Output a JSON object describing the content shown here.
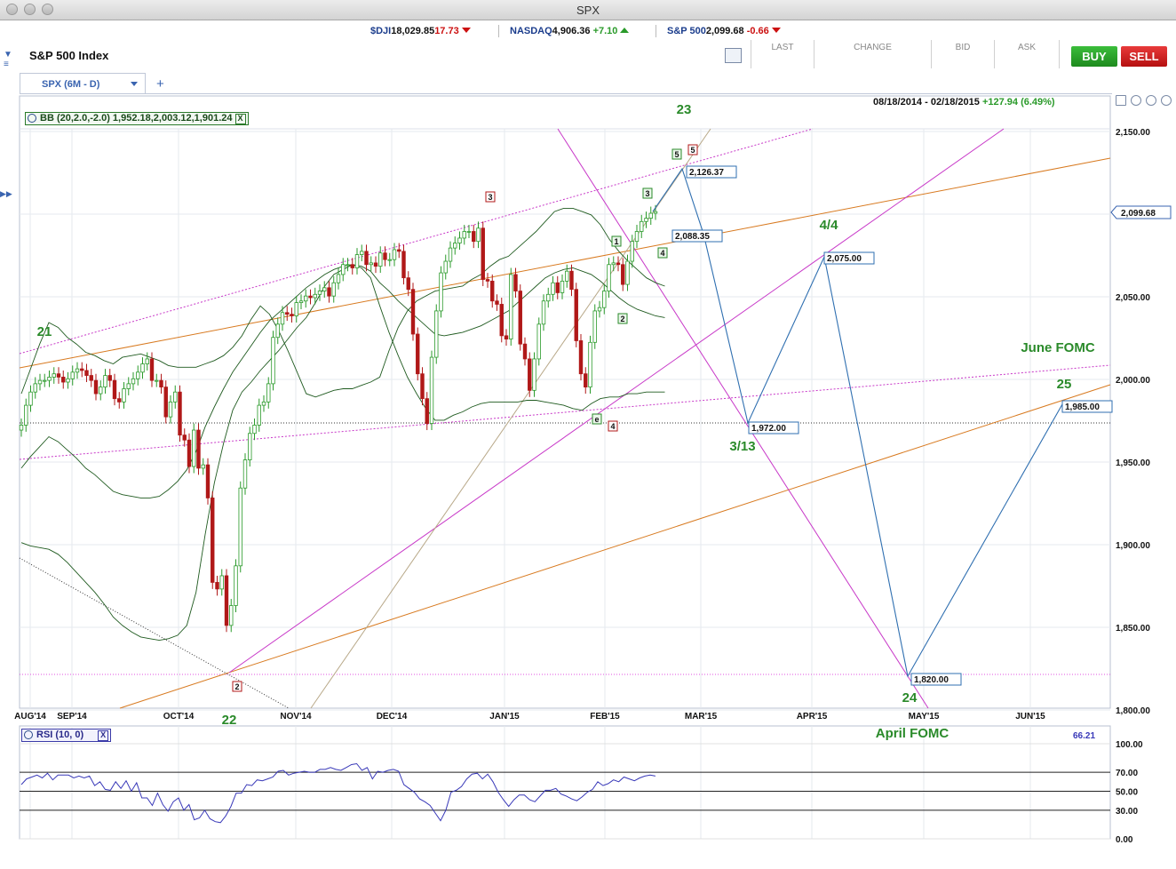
{
  "window": {
    "title": "SPX"
  },
  "tickers": [
    {
      "name": "$DJI",
      "value": "18,029.85",
      "change": "17.73",
      "dir": "down"
    },
    {
      "name": "NASDAQ",
      "value": "4,906.36",
      "change": "+7.10",
      "dir": "up"
    },
    {
      "name": "S&P 500",
      "value": "2,099.68",
      "change": "-0.66",
      "dir": "down"
    }
  ],
  "instrument": {
    "name": "S&P 500 Index"
  },
  "quote_headers": {
    "last": "LAST",
    "change": "CHANGE",
    "bid": "BID",
    "ask": "ASK"
  },
  "actions": {
    "buy": "BUY",
    "sell": "SELL"
  },
  "tab": {
    "label": "SPX (6M - D)",
    "add": "+"
  },
  "range": {
    "dates": "08/18/2014 - 02/18/2015",
    "change": "+127.94 (6.49%)"
  },
  "indicators": {
    "bb": "BB (20,2.0,-2.0) 1,952.18,2,003.12,1,901.24",
    "rsi": "RSI (10, 0)",
    "rsi_value": "66.21",
    "close_x": "X"
  },
  "colors": {
    "up": "#2a9a2a",
    "down": "#b01818",
    "bb": "#1f5a1f",
    "rsi": "#3838b8",
    "projection": "#2f6fb0",
    "magenta": "#c838c8",
    "orange": "#d87a20"
  },
  "chart_data": {
    "type": "candlestick",
    "title": "",
    "price_axis": {
      "ticks": [
        "2,150.00",
        "2,100.00",
        "2,050.00",
        "2,000.00",
        "1,950.00",
        "1,900.00",
        "1,850.00",
        "1,800.00"
      ],
      "min": 1800,
      "max": 2150
    },
    "time_axis": {
      "ticks": [
        "AUG'14",
        "SEP'14",
        "OCT'14",
        "NOV'14",
        "DEC'14",
        "JAN'15",
        "FEB'15",
        "MAR'15",
        "APR'15",
        "MAY'15",
        "JUN'15"
      ]
    },
    "last_price": "2,099.68",
    "closes": [
      1971,
      1983,
      1991,
      1996,
      1998,
      1998,
      2000,
      2002,
      2000,
      1997,
      1999,
      2003,
      2005,
      2004,
      2001,
      1998,
      1990,
      1994,
      2001,
      1998,
      1987,
      1985,
      1993,
      1996,
      1999,
      2003,
      2008,
      2011,
      1998,
      1998,
      1994,
      1976,
      1985,
      1991,
      1965,
      1962,
      1946,
      1968,
      1945,
      1947,
      1927,
      1876,
      1872,
      1880,
      1850,
      1862,
      1886,
      1933,
      1950,
      1966,
      1971,
      1983,
      1985,
      1996,
      2024,
      2032,
      2039,
      2038,
      2037,
      2045,
      2046,
      2049,
      2048,
      2050,
      2052,
      2054,
      2049,
      2057,
      2062,
      2068,
      2068,
      2066,
      2074,
      2076,
      2068,
      2069,
      2067,
      2075,
      2071,
      2071,
      2077,
      2076,
      2060,
      2053,
      2026,
      2002,
      1987,
      1972,
      2012,
      2040,
      2063,
      2070,
      2078,
      2081,
      2084,
      2088,
      2088,
      2082,
      2090,
      2059,
      2058,
      2046,
      2044,
      2025,
      2023,
      2062,
      2052,
      2020,
      2011,
      1992,
      2011,
      2032,
      2046,
      2050,
      2057,
      2051,
      2058,
      2064,
      2053,
      2022,
      2002,
      1994,
      2021,
      2040,
      2042,
      2052,
      2068,
      2069,
      2068,
      2056,
      2070,
      2082,
      2088,
      2094,
      2096,
      2099,
      2100
    ],
    "bb_upper": [
      1990,
      2005,
      2020,
      2033,
      2030,
      2024,
      2020,
      2015,
      2013,
      2010,
      2008,
      2012,
      2013,
      2014,
      2012,
      2010,
      2007,
      2006,
      2006,
      2006,
      2008,
      2010,
      2013,
      2018,
      2025,
      2035,
      2043,
      2038,
      2028,
      2016,
      2003,
      1990,
      1988,
      1990,
      1992,
      1993,
      1993,
      1995,
      1997,
      2000,
      2016,
      2030,
      2040,
      2046,
      2049,
      2052,
      2053,
      2054,
      2055,
      2059,
      2062,
      2067,
      2071,
      2073,
      2078,
      2083,
      2088,
      2094,
      2100,
      2102,
      2102,
      2100,
      2098,
      2092,
      2083,
      2076,
      2070,
      2065,
      2060,
      2057,
      2055
    ],
    "bb_lower": [
      1900,
      1898,
      1897,
      1896,
      1893,
      1888,
      1882,
      1876,
      1870,
      1863,
      1855,
      1850,
      1846,
      1843,
      1842,
      1841,
      1842,
      1844,
      1850,
      1870,
      1905,
      1936,
      1960,
      1980,
      1991,
      1997,
      2004,
      2010,
      2016,
      2023,
      2030,
      2036,
      2045,
      2055,
      2062,
      2065,
      2068,
      2066,
      2060,
      2043,
      2027,
      2013,
      2000,
      1990,
      1981,
      1974,
      1974,
      1977,
      1979,
      1982,
      1984,
      1985,
      1985,
      1985,
      1985,
      1986,
      1986,
      1985,
      1984,
      1983,
      1981,
      1980,
      1984,
      1987,
      1988,
      1988,
      1990,
      1990,
      1991,
      1991,
      1991
    ],
    "bb_middle": [
      1945,
      1952,
      1958,
      1964,
      1961,
      1956,
      1951,
      1945,
      1941,
      1936,
      1931,
      1929,
      1928,
      1927,
      1927,
      1928,
      1932,
      1937,
      1944,
      1955,
      1970,
      1982,
      1993,
      2003,
      2011,
      2019,
      2027,
      2034,
      2039,
      2044,
      2049,
      2054,
      2058,
      2062,
      2065,
      2067,
      2068,
      2067,
      2064,
      2057,
      2052,
      2046,
      2041,
      2036,
      2031,
      2026,
      2025,
      2026,
      2027,
      2029,
      2031,
      2034,
      2037,
      2040,
      2045,
      2050,
      2055,
      2060,
      2063,
      2065,
      2066,
      2064,
      2062,
      2058,
      2053,
      2048,
      2044,
      2041,
      2039,
      2037,
      2036
    ],
    "rsi": {
      "ticks": [
        "100.00",
        "70.00",
        "50.00",
        "30.00",
        "0.00"
      ],
      "values": [
        57,
        63,
        65,
        67,
        64,
        69,
        62,
        67,
        67,
        67,
        64,
        66,
        64,
        66,
        56,
        60,
        52,
        51,
        60,
        53,
        61,
        50,
        59,
        43,
        43,
        35,
        48,
        36,
        29,
        39,
        43,
        30,
        36,
        20,
        22,
        30,
        21,
        18,
        17,
        24,
        34,
        48,
        48,
        57,
        56,
        62,
        61,
        63,
        65,
        71,
        72,
        67,
        69,
        70,
        71,
        70,
        70,
        73,
        73,
        75,
        73,
        72,
        75,
        78,
        79,
        72,
        75,
        63,
        71,
        70,
        72,
        73,
        71,
        57,
        53,
        49,
        42,
        39,
        35,
        27,
        19,
        30,
        49,
        51,
        55,
        63,
        68,
        69,
        63,
        68,
        60,
        49,
        41,
        34,
        41,
        46,
        46,
        41,
        39,
        45,
        51,
        51,
        53,
        47,
        45,
        42,
        40,
        44,
        49,
        52,
        60,
        56,
        58,
        62,
        60,
        65,
        63,
        61,
        64,
        66,
        67,
        66
      ]
    },
    "projection": {
      "points": [
        [
          "2,126.37"
        ],
        [
          "2,088.35"
        ],
        [
          "1,972.00"
        ],
        [
          "2,075.00"
        ],
        [
          "1,820.00"
        ],
        [
          "1,985.00"
        ]
      ]
    },
    "annotations": [
      "21",
      "22",
      "23",
      "24",
      "25",
      "3/13",
      "4/4",
      "June FOMC",
      "April FOMC"
    ],
    "wave_labels": [
      "1",
      "2",
      "3",
      "4",
      "5",
      "3",
      "5",
      "2",
      "4",
      "e"
    ]
  }
}
